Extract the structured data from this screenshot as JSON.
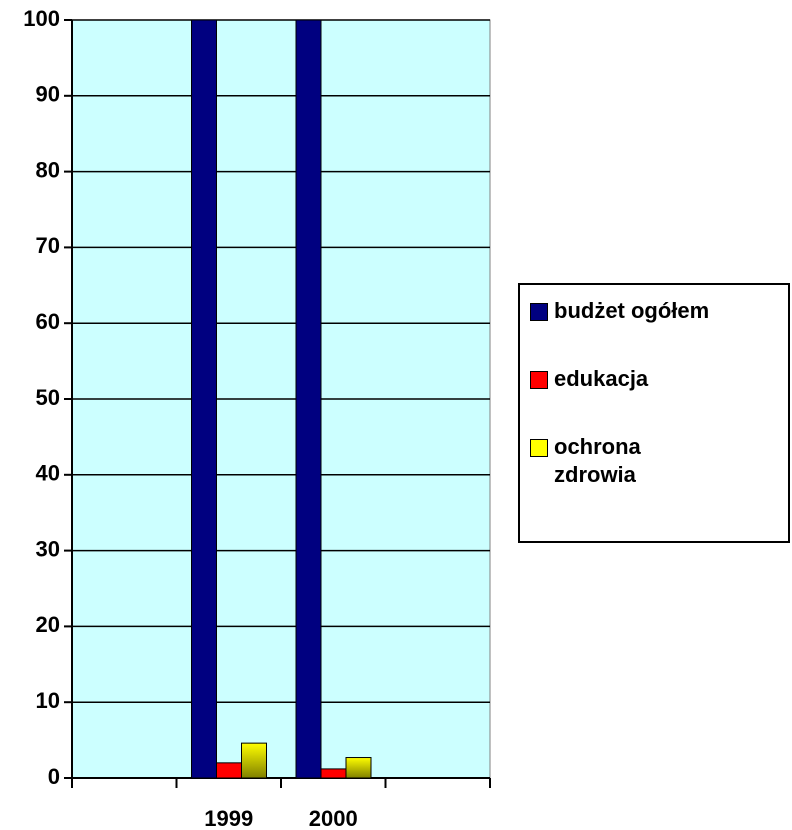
{
  "chart_data": {
    "type": "bar",
    "categories": [
      null,
      "1999",
      "2000",
      null
    ],
    "series": [
      {
        "name": "budżet ogółem",
        "color": "#000080",
        "values": [
          null,
          100,
          100,
          null
        ]
      },
      {
        "name": "edukacja",
        "color": "#ff0000",
        "values": [
          null,
          2,
          1.2,
          null
        ]
      },
      {
        "name": "ochrona zdrowia",
        "color": "#ffff00",
        "values": [
          null,
          4.6,
          2.7,
          null
        ]
      }
    ],
    "ylim": [
      0,
      100
    ],
    "yticks": [
      0,
      10,
      20,
      30,
      40,
      50,
      60,
      70,
      80,
      90,
      100
    ],
    "grid": true,
    "plot_background": "#ccffff",
    "legend": "right"
  }
}
